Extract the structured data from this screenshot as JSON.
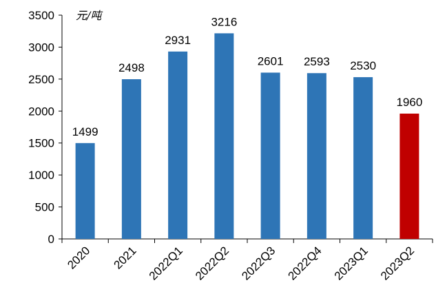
{
  "chart_data": {
    "type": "bar",
    "title": "",
    "xlabel": "",
    "ylabel": "",
    "unit_label": "元/吨",
    "categories": [
      "2020",
      "2021",
      "2022Q1",
      "2022Q2",
      "2022Q3",
      "2022Q4",
      "2023Q1",
      "2023Q2"
    ],
    "values": [
      1499,
      2498,
      2931,
      3216,
      2601,
      2593,
      2530,
      1960
    ],
    "data_labels": [
      "1499",
      "2498",
      "2931",
      "3216",
      "2601",
      "2593",
      "2530",
      "1960"
    ],
    "ylim": [
      0,
      3500
    ],
    "yticks": [
      0,
      500,
      1000,
      1500,
      2000,
      2500,
      3000,
      3500
    ],
    "ytick_labels": [
      "0",
      "500",
      "1000",
      "1500",
      "2000",
      "2500",
      "3000",
      "3500"
    ],
    "grid": false,
    "legend": "none",
    "colors": {
      "default_bar": "#2E75B6",
      "highlight_bar": "#C00000",
      "axis": "#000000"
    },
    "highlight_index": 7
  }
}
